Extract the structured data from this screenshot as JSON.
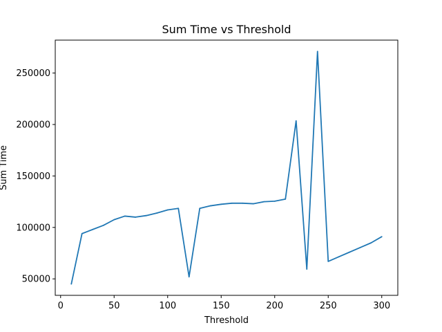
{
  "chart_data": {
    "type": "line",
    "title": "Sum Time vs Threshold",
    "xlabel": "Threshold",
    "ylabel": "Sum Time",
    "xlim": [
      -5,
      315
    ],
    "ylim": [
      34000,
      282000
    ],
    "xticks": [
      0,
      50,
      100,
      150,
      200,
      250,
      300
    ],
    "yticks": [
      50000,
      100000,
      150000,
      200000,
      250000
    ],
    "grid": false,
    "series": [
      {
        "color": "#1f77b4",
        "x": [
          10,
          20,
          30,
          40,
          50,
          60,
          70,
          80,
          90,
          100,
          110,
          120,
          130,
          140,
          150,
          160,
          170,
          180,
          190,
          200,
          210,
          220,
          230,
          240,
          250,
          260,
          270,
          280,
          290,
          300
        ],
        "y": [
          45000,
          94000,
          98000,
          102000,
          107500,
          111000,
          110000,
          111500,
          114000,
          117000,
          118500,
          52000,
          118500,
          121000,
          122500,
          123500,
          123500,
          123000,
          125000,
          125500,
          127500,
          203500,
          59500,
          271000,
          67000,
          71500,
          76000,
          80500,
          85000,
          91000
        ]
      }
    ]
  }
}
